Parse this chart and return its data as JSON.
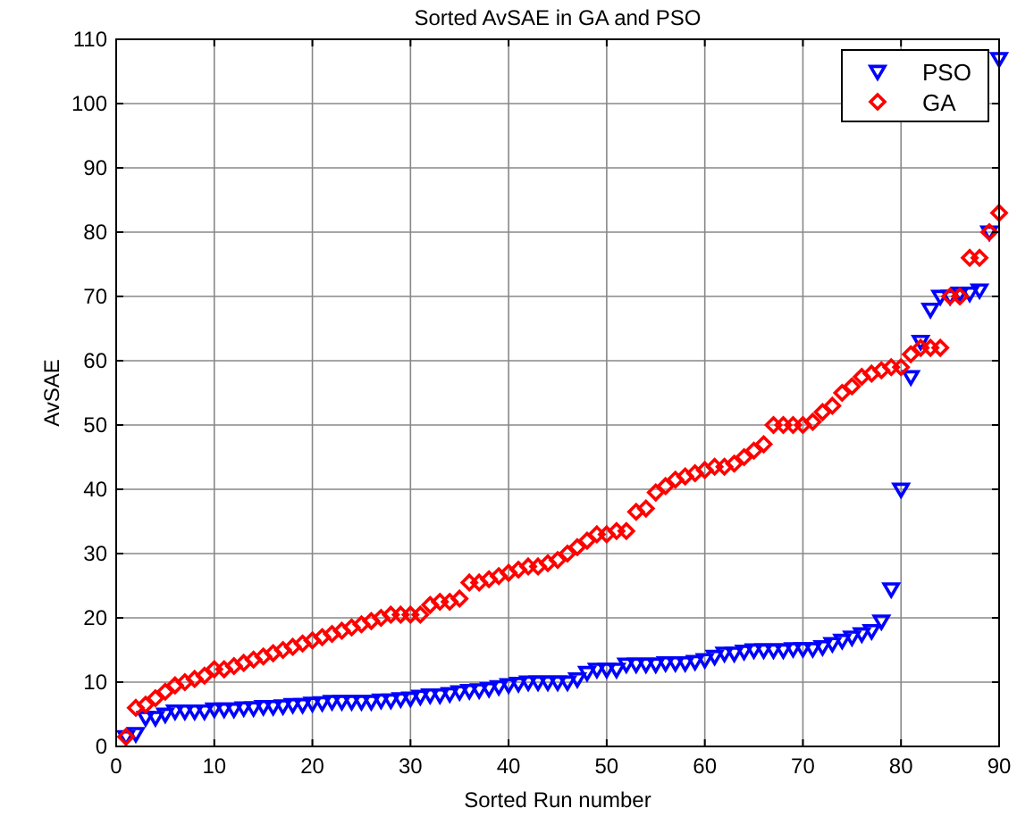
{
  "chart_data": {
    "type": "scatter",
    "title": "Sorted AvSAE in GA and PSO",
    "xlabel": "Sorted Run number",
    "ylabel": "AvSAE",
    "x": [
      1,
      2,
      3,
      4,
      5,
      6,
      7,
      8,
      9,
      10,
      11,
      12,
      13,
      14,
      15,
      16,
      17,
      18,
      19,
      20,
      21,
      22,
      23,
      24,
      25,
      26,
      27,
      28,
      29,
      30,
      31,
      32,
      33,
      34,
      35,
      36,
      37,
      38,
      39,
      40,
      41,
      42,
      43,
      44,
      45,
      46,
      47,
      48,
      49,
      50,
      51,
      52,
      53,
      54,
      55,
      56,
      57,
      58,
      59,
      60,
      61,
      62,
      63,
      64,
      65,
      66,
      67,
      68,
      69,
      70,
      71,
      72,
      73,
      74,
      75,
      76,
      77,
      78,
      79,
      80,
      81,
      82,
      83,
      84,
      85,
      86,
      87,
      88,
      89,
      90
    ],
    "series": [
      {
        "name": "PSO",
        "color": "#0000ff",
        "marker": "triangle",
        "values": [
          1.5,
          2,
          4.5,
          4.5,
          5,
          5.5,
          5.5,
          5.5,
          5.5,
          5.8,
          5.8,
          5.8,
          6,
          6,
          6.2,
          6.2,
          6.3,
          6.5,
          6.5,
          6.7,
          6.8,
          7,
          7,
          7,
          7,
          7,
          7.2,
          7.2,
          7.4,
          7.5,
          7.8,
          8,
          8,
          8.2,
          8.5,
          8.7,
          8.8,
          9,
          9.3,
          9.6,
          9.8,
          10,
          10,
          10,
          10,
          10,
          10.5,
          11.5,
          12,
          12,
          12,
          12.8,
          12.8,
          12.8,
          12.8,
          13,
          13,
          13,
          13.2,
          13.5,
          14,
          14.5,
          14.5,
          14.8,
          15,
          15,
          15,
          15,
          15.2,
          15.2,
          15.2,
          15.5,
          16,
          16.5,
          17,
          17.5,
          18,
          19.5,
          24.5,
          40,
          57.5,
          63,
          68,
          70,
          70,
          70.5,
          70.5,
          71,
          80,
          107
        ]
      },
      {
        "name": "GA",
        "color": "#ff0000",
        "marker": "diamond",
        "values": [
          1.5,
          6,
          6.5,
          7.5,
          8.5,
          9.5,
          10,
          10.5,
          11,
          12,
          12,
          12.5,
          13,
          13.5,
          14,
          14.5,
          15,
          15.5,
          16,
          16.5,
          17,
          17.5,
          18,
          18.5,
          19,
          19.5,
          20,
          20.5,
          20.5,
          20.5,
          20.5,
          22,
          22.5,
          22.5,
          23,
          25.5,
          25.5,
          26,
          26.5,
          27,
          27.5,
          28,
          28,
          28.5,
          29,
          30,
          31,
          32,
          33,
          33,
          33.5,
          33.5,
          36.5,
          37,
          39.5,
          40.5,
          41.5,
          42,
          42.5,
          43,
          43.5,
          43.5,
          44,
          45,
          46,
          47,
          50,
          50,
          50,
          50,
          50.5,
          52,
          53,
          55,
          56,
          57.5,
          58,
          58.5,
          59,
          59,
          61,
          62,
          62,
          62,
          70,
          70,
          76,
          76,
          80,
          83
        ]
      }
    ],
    "xlim": [
      0,
      90
    ],
    "xticks": [
      0,
      10,
      20,
      30,
      40,
      50,
      60,
      70,
      80,
      90
    ],
    "ylim": [
      0,
      110
    ],
    "yticks": [
      0,
      10,
      20,
      30,
      40,
      50,
      60,
      70,
      80,
      90,
      100,
      110
    ],
    "grid": true,
    "legend": "top right"
  }
}
